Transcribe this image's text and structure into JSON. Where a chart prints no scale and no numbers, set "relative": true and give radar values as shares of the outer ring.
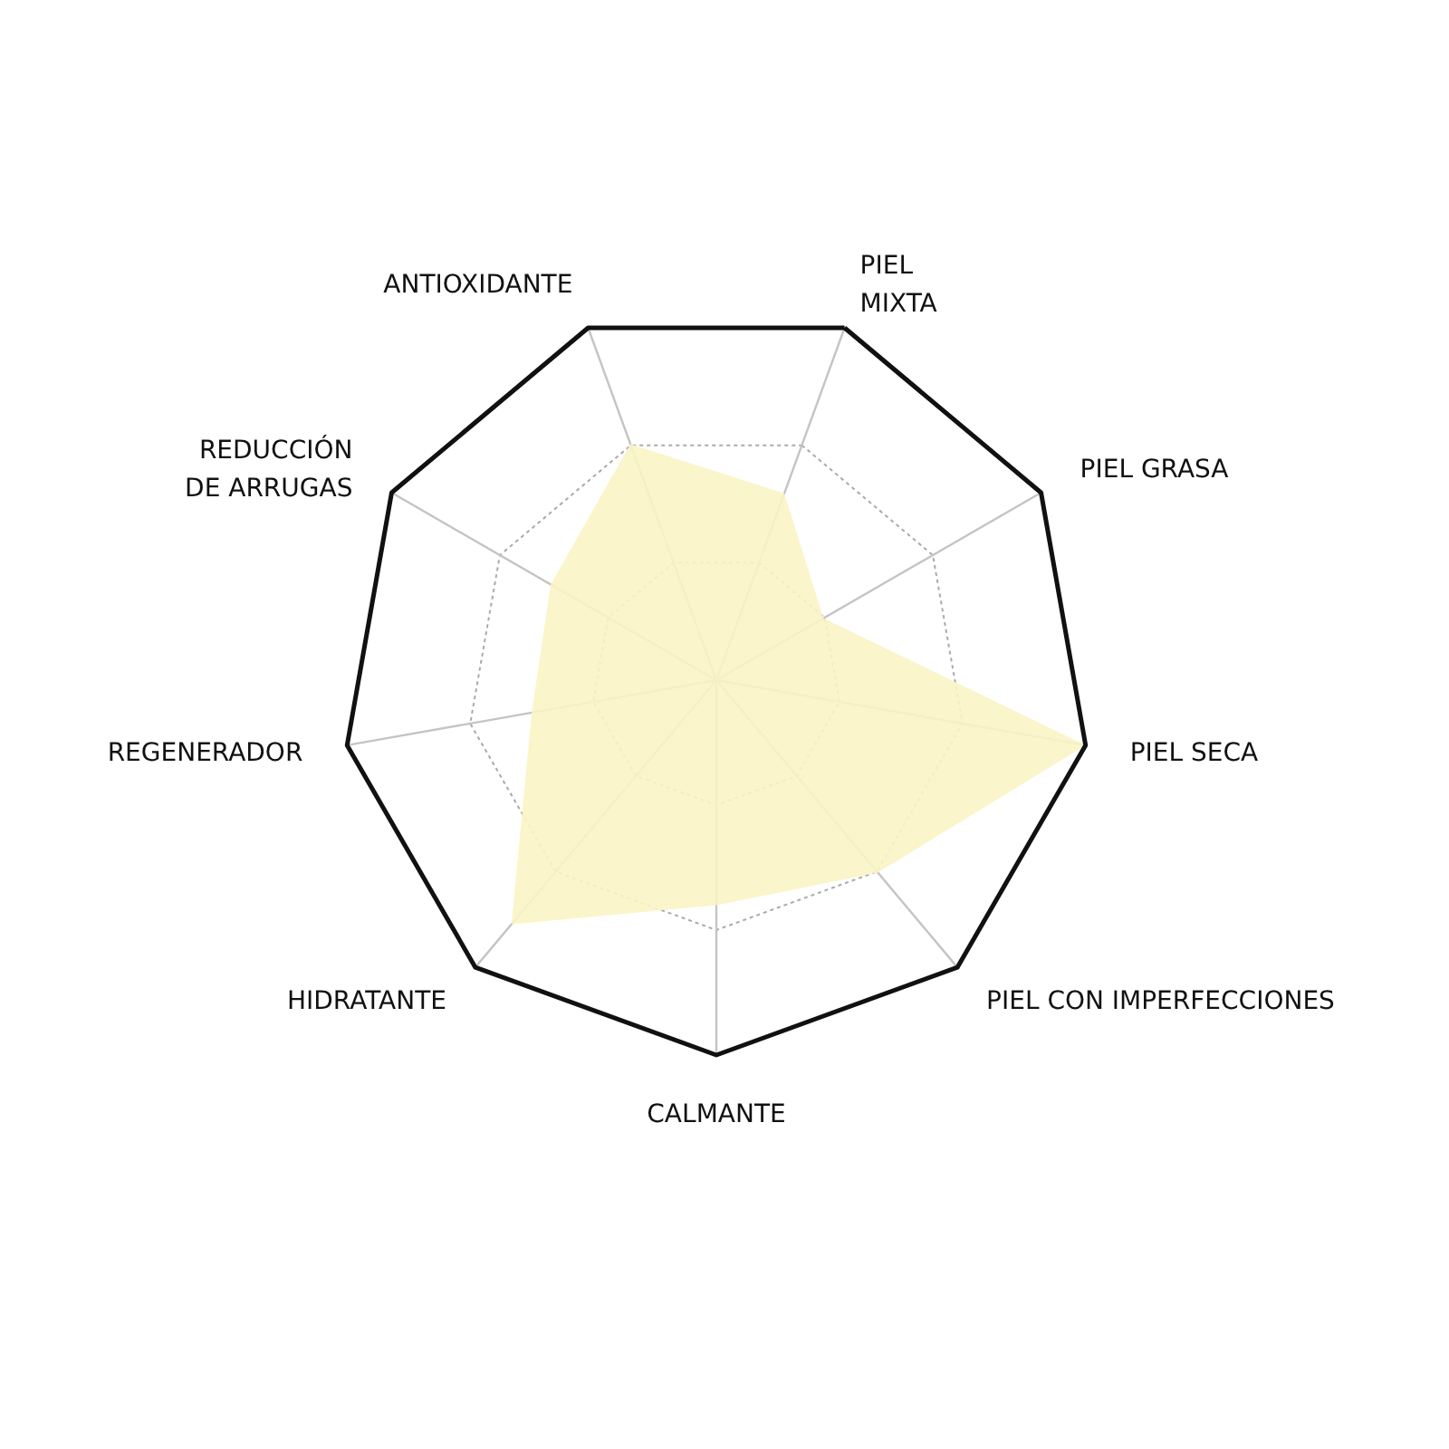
{
  "chart_data": {
    "type": "radar",
    "categories": [
      "PIEL\nMIXTA",
      "PIEL GRASA",
      "PIEL SECA",
      "PIEL CON IMPERFECCIONES",
      "CALMANTE",
      "HIDRATANTE",
      "REGENERADOR",
      "REDUCCIÓN\nDE ARRUGAS",
      "ANTIOXIDANTE"
    ],
    "series": [
      {
        "color": "#faf4c4",
        "values": [
          0.53,
          0.33,
          1,
          0.67,
          0.6,
          0.85,
          0.5,
          0.51,
          0.67
        ]
      }
    ],
    "relative": true,
    "grid": true
  }
}
